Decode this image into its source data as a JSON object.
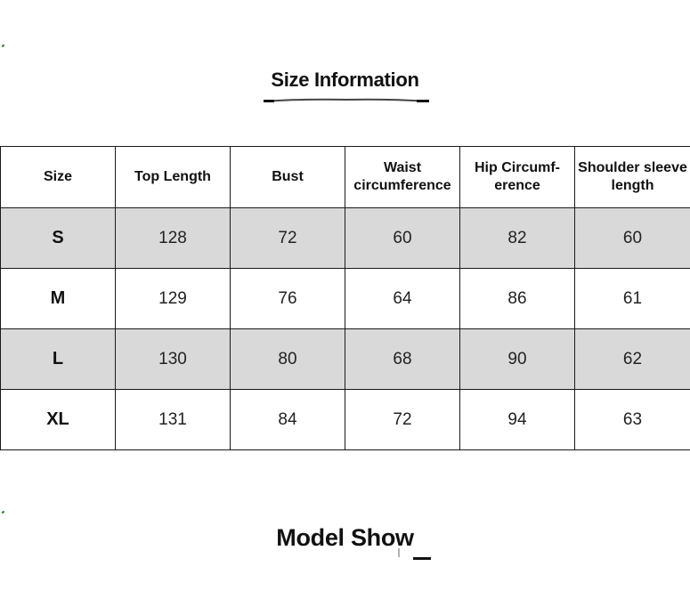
{
  "sections": {
    "size_info_title": "Size Information",
    "model_show_title": "Model Show"
  },
  "table": {
    "headers": [
      "Size",
      "Top Length",
      "Bust",
      "Waist circumference",
      "Hip Circumf- erence",
      "Shoulder sleeve length"
    ],
    "rows": [
      [
        "S",
        "128",
        "72",
        "60",
        "82",
        "60"
      ],
      [
        "M",
        "129",
        "76",
        "64",
        "86",
        "61"
      ],
      [
        "L",
        "130",
        "80",
        "68",
        "90",
        "62"
      ],
      [
        "XL",
        "131",
        "84",
        "72",
        "94",
        "63"
      ]
    ],
    "shaded_row_color": "#d9d9d9",
    "border_color": "#1a1a1a"
  },
  "accent": {
    "tick_color": "#2a7a2a"
  }
}
